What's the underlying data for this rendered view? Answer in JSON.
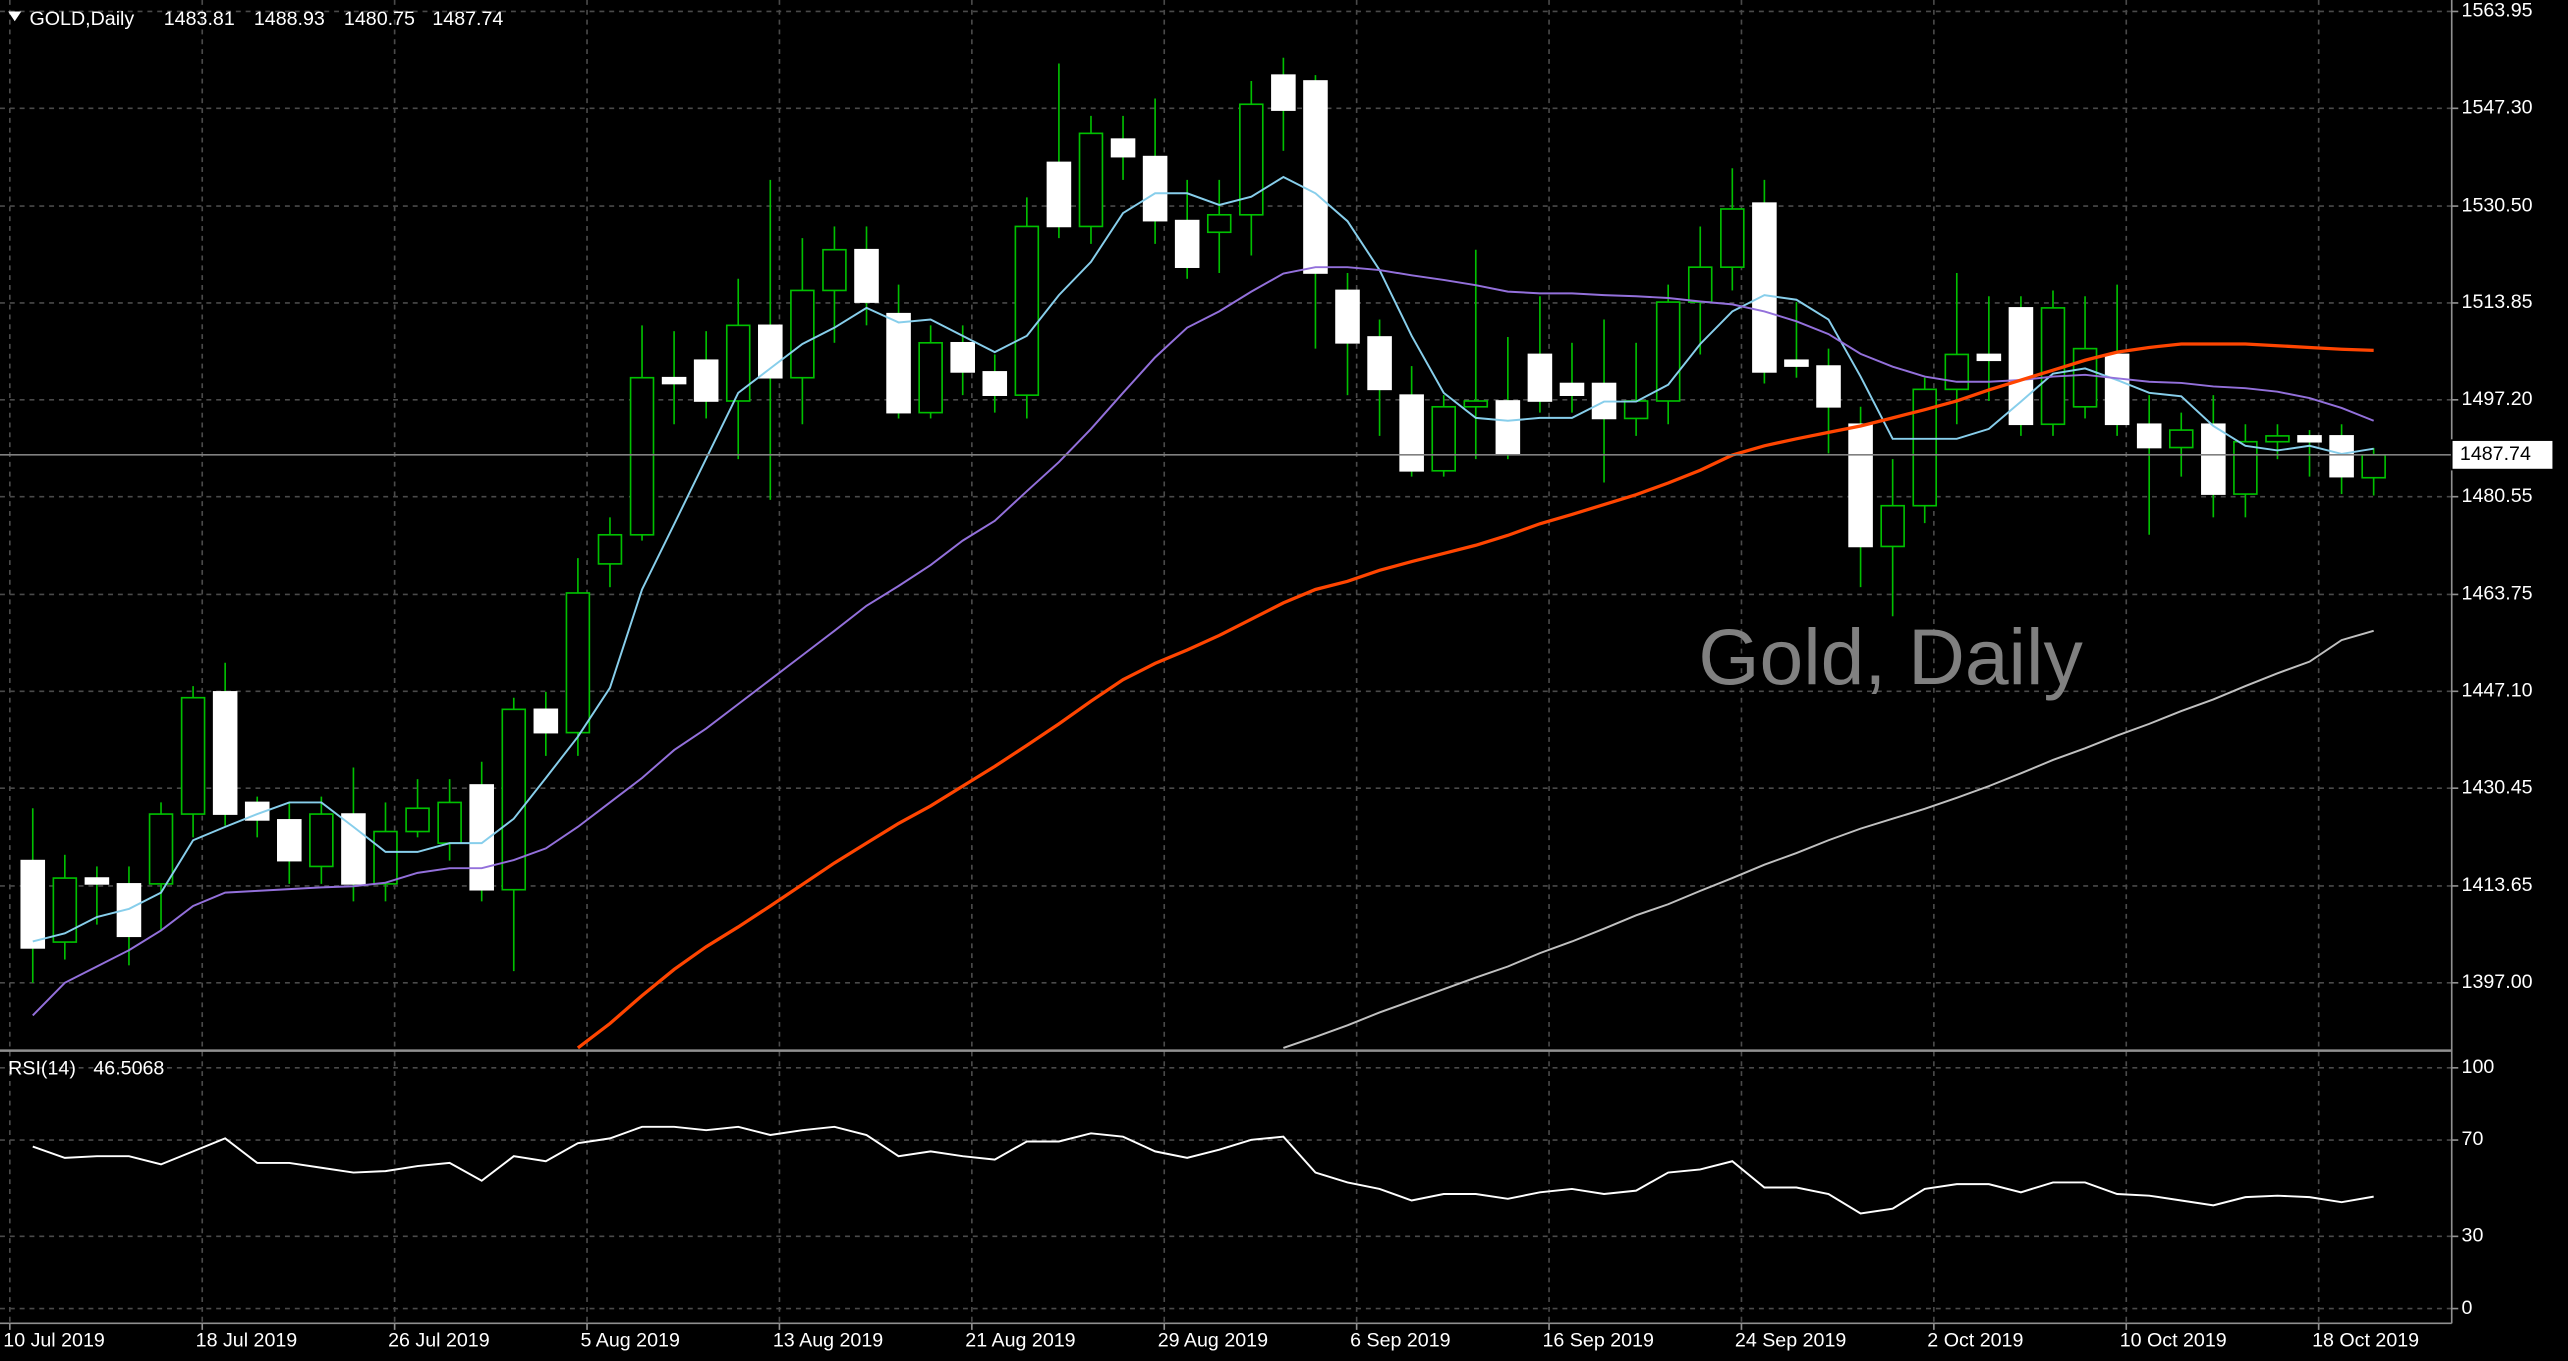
{
  "chart_data": [
    {
      "type": "candlestick",
      "title": "GOLD,Daily",
      "watermark": "Gold, Daily",
      "categories": [
        "10 Jul 2019",
        null,
        null,
        null,
        null,
        null,
        "18 Jul 2019",
        null,
        null,
        null,
        null,
        null,
        "26 Jul 2019",
        null,
        null,
        null,
        null,
        null,
        "5 Aug 2019",
        null,
        null,
        null,
        null,
        null,
        "13 Aug 2019",
        null,
        null,
        null,
        null,
        null,
        "21 Aug 2019",
        null,
        null,
        null,
        null,
        null,
        "29 Aug 2019",
        null,
        null,
        null,
        null,
        null,
        "6 Sep 2019",
        null,
        null,
        null,
        null,
        null,
        "16 Sep 2019",
        null,
        null,
        null,
        null,
        null,
        "24 Sep 2019",
        null,
        null,
        null,
        null,
        null,
        "2 Oct 2019",
        null,
        null,
        null,
        null,
        null,
        "10 Oct 2019",
        null,
        null,
        null,
        null,
        null,
        "18 Oct 2019",
        null
      ],
      "open": [
        1418,
        1404,
        1415,
        1414,
        1414,
        1426,
        1447,
        1428,
        1425,
        1417,
        1426,
        1414,
        1423,
        1421,
        1431,
        1413,
        1444,
        1440,
        1469,
        1474,
        1501,
        1504,
        1497,
        1510,
        1501,
        1516,
        1523,
        1512,
        1495,
        1507,
        1502,
        1498,
        1538,
        1527,
        1542,
        1539,
        1528,
        1526,
        1529,
        1553,
        1552,
        1516,
        1508,
        1498,
        1485,
        1496,
        1497,
        1505,
        1500,
        1500,
        1494,
        1497,
        1514,
        1520,
        1531,
        1504,
        1503,
        1493,
        1472,
        1479,
        1499,
        1505,
        1513,
        1493,
        1496,
        1505,
        1493,
        1489,
        1493,
        1481,
        1490,
        1491,
        1491,
        1483.81
      ],
      "high": [
        1427,
        1419,
        1417,
        1417,
        1428,
        1448,
        1452,
        1429,
        1428,
        1429,
        1434,
        1428,
        1432,
        1432,
        1435,
        1446,
        1447,
        1470,
        1477,
        1510,
        1509,
        1509,
        1518,
        1535,
        1525,
        1527,
        1527,
        1517,
        1510,
        1510,
        1505,
        1532,
        1555,
        1546,
        1546,
        1549,
        1535,
        1535,
        1552,
        1556,
        1553,
        1519,
        1511,
        1503,
        1498,
        1523,
        1508,
        1515,
        1507,
        1511,
        1507,
        1517,
        1527,
        1537,
        1535,
        1514,
        1506,
        1496,
        1487,
        1501,
        1519,
        1515,
        1515,
        1516,
        1515,
        1517,
        1498,
        1495,
        1498,
        1493,
        1493,
        1492,
        1493,
        1488.93
      ],
      "low": [
        1397,
        1401,
        1407,
        1400,
        1406,
        1422,
        1424,
        1422,
        1414,
        1414,
        1411,
        1411,
        1422,
        1418,
        1411,
        1399,
        1436,
        1436,
        1465,
        1473,
        1493,
        1494,
        1487,
        1480,
        1493,
        1507,
        1510,
        1494,
        1494,
        1498,
        1495,
        1494,
        1525,
        1524,
        1535,
        1524,
        1518,
        1519,
        1522,
        1540,
        1506,
        1498,
        1491,
        1484,
        1484,
        1487,
        1487,
        1495,
        1495,
        1483,
        1491,
        1493,
        1505,
        1516,
        1500,
        1501,
        1488,
        1465,
        1460,
        1476,
        1493,
        1497,
        1491,
        1491,
        1494,
        1491,
        1474,
        1484,
        1477,
        1477,
        1487,
        1484,
        1481,
        1480.75
      ],
      "close": [
        1403,
        1415,
        1414,
        1405,
        1426,
        1446,
        1426,
        1425,
        1418,
        1426,
        1414,
        1423,
        1427,
        1428,
        1413,
        1444,
        1440,
        1464,
        1474,
        1501,
        1500,
        1497,
        1510,
        1501,
        1516,
        1523,
        1514,
        1495,
        1507,
        1502,
        1498,
        1527,
        1527,
        1543,
        1539,
        1528,
        1520,
        1529,
        1548,
        1547,
        1519,
        1507,
        1499,
        1485,
        1496,
        1497,
        1488,
        1497,
        1498,
        1494,
        1497,
        1514,
        1520,
        1530,
        1502,
        1503,
        1496,
        1472,
        1479,
        1499,
        1505,
        1504,
        1493,
        1513,
        1506,
        1493,
        1489,
        1492,
        1481,
        1490,
        1491,
        1490,
        1484,
        1487.74
      ],
      "up_color": "#000000",
      "up_border": "#00c000",
      "down_color": "#ffffff",
      "wick_color": "#00c000",
      "lines": [
        {
          "color": "#87ceeb",
          "values": [
            1404.1,
            1405.5,
            1408.3,
            1409.7,
            1412.5,
            1421.5,
            1423.8,
            1426.0,
            1428.0,
            1428.0,
            1423.8,
            1419.5,
            1419.5,
            1421.0,
            1421.0,
            1425.2,
            1432.2,
            1439.3,
            1447.7,
            1464.6,
            1475.8,
            1487.1,
            1498.4,
            1502.6,
            1506.8,
            1509.6,
            1513.0,
            1510.5,
            1511.0,
            1508.2,
            1505.4,
            1508.2,
            1515.2,
            1520.9,
            1529.3,
            1532.7,
            1532.7,
            1530.7,
            1532.1,
            1535.5,
            1532.7,
            1527.9,
            1519.5,
            1508.2,
            1498.4,
            1494.1,
            1493.6,
            1494.1,
            1494.1,
            1496.9,
            1496.9,
            1499.8,
            1506.8,
            1512.4,
            1515.2,
            1514.4,
            1511.0,
            1501.2,
            1490.5,
            1490.5,
            1490.5,
            1492.2,
            1496.9,
            1501.7,
            1502.6,
            1500.6,
            1498.4,
            1497.8,
            1492.7,
            1489.3,
            1488.5,
            1489.3,
            1487.9,
            1488.8
          ]
        },
        {
          "color": "#9370db",
          "values": [
            1391.4,
            1397.0,
            1399.8,
            1402.6,
            1406.0,
            1410.2,
            1412.5,
            1412.8,
            1413.1,
            1413.4,
            1413.6,
            1414.2,
            1415.9,
            1416.7,
            1416.7,
            1418.1,
            1420.1,
            1423.8,
            1428.0,
            1432.2,
            1437.0,
            1440.7,
            1444.9,
            1449.1,
            1453.3,
            1457.5,
            1461.8,
            1465.2,
            1468.8,
            1473.0,
            1476.4,
            1481.5,
            1486.5,
            1492.2,
            1498.4,
            1504.5,
            1509.6,
            1512.4,
            1515.8,
            1518.9,
            1520.0,
            1520.0,
            1519.5,
            1518.6,
            1517.8,
            1516.9,
            1515.8,
            1515.5,
            1515.5,
            1515.2,
            1515.0,
            1514.7,
            1514.1,
            1513.6,
            1512.4,
            1510.7,
            1508.5,
            1505.1,
            1502.9,
            1501.2,
            1500.3,
            1500.3,
            1500.6,
            1501.2,
            1501.5,
            1500.9,
            1500.3,
            1500.1,
            1499.5,
            1499.2,
            1498.6,
            1497.5,
            1495.8,
            1493.6
          ]
        },
        {
          "color": "#ff4500",
          "values": [
            null,
            null,
            null,
            null,
            null,
            null,
            null,
            null,
            null,
            null,
            null,
            null,
            null,
            null,
            null,
            null,
            null,
            1385.8,
            1390.0,
            1394.8,
            1399.3,
            1403.2,
            1406.6,
            1410.2,
            1413.9,
            1417.6,
            1421.0,
            1424.4,
            1427.4,
            1430.8,
            1434.2,
            1437.8,
            1441.5,
            1445.4,
            1449.1,
            1451.9,
            1454.2,
            1456.7,
            1459.5,
            1462.3,
            1464.6,
            1466.0,
            1467.9,
            1469.4,
            1470.8,
            1472.2,
            1473.9,
            1475.9,
            1477.5,
            1479.2,
            1480.9,
            1482.9,
            1485.1,
            1487.7,
            1489.3,
            1490.5,
            1491.6,
            1492.7,
            1494.1,
            1495.5,
            1497.0,
            1498.9,
            1500.6,
            1502.3,
            1504.0,
            1505.4,
            1506.2,
            1506.8,
            1506.8,
            1506.8,
            1506.5,
            1506.2,
            1505.9,
            1505.7
          ]
        },
        {
          "color": "#c0c0c0",
          "values": [
            null,
            null,
            null,
            null,
            null,
            null,
            null,
            null,
            null,
            null,
            null,
            null,
            null,
            null,
            null,
            null,
            null,
            null,
            null,
            null,
            null,
            null,
            null,
            null,
            null,
            null,
            null,
            null,
            null,
            null,
            null,
            null,
            null,
            null,
            null,
            null,
            null,
            null,
            null,
            1385.8,
            1387.7,
            1389.7,
            1391.9,
            1393.9,
            1395.9,
            1397.9,
            1399.8,
            1402.1,
            1404.1,
            1406.3,
            1408.6,
            1410.5,
            1412.8,
            1415.0,
            1417.3,
            1419.3,
            1421.5,
            1423.5,
            1425.2,
            1426.9,
            1428.8,
            1430.8,
            1433.0,
            1435.3,
            1437.3,
            1439.5,
            1441.5,
            1443.7,
            1445.7,
            1448.0,
            1450.2,
            1452.2,
            1455.9,
            1457.5
          ]
        }
      ],
      "ylim": [
        1385.48,
        1565.92
      ],
      "yticks": [
        1563.95,
        {
          "value": 1547.3,
          "label": "1547.30"
        },
        {
          "value": 1530.5,
          "label": "1530.50"
        },
        1513.85,
        {
          "value": 1497.2,
          "label": "1497.20"
        },
        1480.55,
        1463.75,
        {
          "value": 1447.1,
          "label": "1447.10"
        },
        1430.45,
        1413.65,
        {
          "value": 1397,
          "label": "1397.00"
        }
      ],
      "grid": true
    },
    {
      "type": "line",
      "title": "RSI(14)",
      "color": "#ffffff",
      "values": [
        67.3,
        62.6,
        63.3,
        63.3,
        59.9,
        65.3,
        70.7,
        60.5,
        60.5,
        58.5,
        56.5,
        57.1,
        59.2,
        60.5,
        53.1,
        63.3,
        61.2,
        68.7,
        70.7,
        75.5,
        75.5,
        74.1,
        75.5,
        72.1,
        74.1,
        75.5,
        72.1,
        63.3,
        65.3,
        63.3,
        61.9,
        69.4,
        69.4,
        72.8,
        71.4,
        65.3,
        62.6,
        66.0,
        70.1,
        71.4,
        56.5,
        52.4,
        49.7,
        44.9,
        47.6,
        47.6,
        45.6,
        48.3,
        49.7,
        47.6,
        49.0,
        56.5,
        57.8,
        61.2,
        50.3,
        50.3,
        47.6,
        39.5,
        41.5,
        49.7,
        51.7,
        51.7,
        48.3,
        52.4,
        52.4,
        47.6,
        46.9,
        44.9,
        42.9,
        46.3,
        46.9,
        46.3,
        44.2,
        46.5068
      ],
      "ylim": [
        0,
        100
      ],
      "yticks": [
        100,
        70,
        30,
        0
      ],
      "grid": true
    }
  ]
}
